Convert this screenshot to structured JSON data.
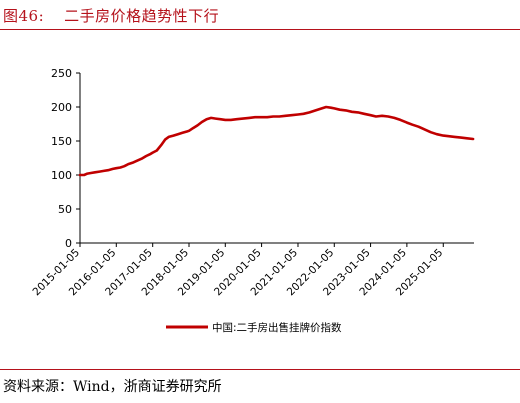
{
  "header": {
    "figure_number": "图46:",
    "title": "二手房价格趋势性下行"
  },
  "footer": {
    "source": "资料来源：Wind，浙商证券研究所"
  },
  "chart_data": {
    "type": "line",
    "title": "二手房价格趋势性下行",
    "xlabel": "",
    "ylabel": "",
    "ylim": [
      0,
      250
    ],
    "yticks": [
      0,
      50,
      100,
      150,
      200,
      250
    ],
    "xticks": [
      "2015-01-05",
      "2016-01-05",
      "2017-01-05",
      "2018-01-05",
      "2019-01-05",
      "2020-01-05",
      "2021-01-05",
      "2022-01-05",
      "2023-01-05",
      "2024-01-05",
      "2025-01-05"
    ],
    "grid": false,
    "legend_position": "bottom-center",
    "series": [
      {
        "name": "中国:二手房出售挂牌价指数",
        "color": "#c00000",
        "points": [
          [
            "2015-01-05",
            100
          ],
          [
            "2015-02-15",
            100
          ],
          [
            "2015-03-20",
            102
          ],
          [
            "2015-04-25",
            103
          ],
          [
            "2015-06-05",
            104
          ],
          [
            "2015-07-20",
            105
          ],
          [
            "2015-09-01",
            106
          ],
          [
            "2015-10-15",
            107
          ],
          [
            "2015-12-01",
            109
          ],
          [
            "2016-01-05",
            110
          ],
          [
            "2016-02-15",
            111
          ],
          [
            "2016-03-25",
            113
          ],
          [
            "2016-05-05",
            116
          ],
          [
            "2016-06-15",
            118
          ],
          [
            "2016-08-01",
            121
          ],
          [
            "2016-09-15",
            124
          ],
          [
            "2016-11-01",
            128
          ],
          [
            "2016-12-15",
            131
          ],
          [
            "2017-01-05",
            133
          ],
          [
            "2017-02-15",
            136
          ],
          [
            "2017-04-01",
            144
          ],
          [
            "2017-05-10",
            152
          ],
          [
            "2017-06-15",
            156
          ],
          [
            "2017-08-01",
            158
          ],
          [
            "2017-09-15",
            160
          ],
          [
            "2017-11-01",
            162
          ],
          [
            "2017-12-15",
            164
          ],
          [
            "2018-01-05",
            165
          ],
          [
            "2018-02-15",
            169
          ],
          [
            "2018-04-01",
            173
          ],
          [
            "2018-05-15",
            178
          ],
          [
            "2018-07-01",
            182
          ],
          [
            "2018-08-15",
            184
          ],
          [
            "2018-10-01",
            183
          ],
          [
            "2018-11-15",
            182
          ],
          [
            "2019-01-05",
            181
          ],
          [
            "2019-03-01",
            181
          ],
          [
            "2019-05-01",
            182
          ],
          [
            "2019-07-01",
            183
          ],
          [
            "2019-09-01",
            184
          ],
          [
            "2019-11-01",
            185
          ],
          [
            "2020-01-05",
            185
          ],
          [
            "2020-03-01",
            185
          ],
          [
            "2020-05-01",
            186
          ],
          [
            "2020-07-01",
            186
          ],
          [
            "2020-09-01",
            187
          ],
          [
            "2020-11-01",
            188
          ],
          [
            "2021-01-05",
            189
          ],
          [
            "2021-03-01",
            190
          ],
          [
            "2021-05-01",
            192
          ],
          [
            "2021-07-01",
            195
          ],
          [
            "2021-09-01",
            198
          ],
          [
            "2021-10-15",
            200
          ],
          [
            "2021-12-01",
            199
          ],
          [
            "2022-01-05",
            198
          ],
          [
            "2022-03-01",
            196
          ],
          [
            "2022-05-01",
            195
          ],
          [
            "2022-07-01",
            193
          ],
          [
            "2022-09-01",
            192
          ],
          [
            "2022-11-01",
            190
          ],
          [
            "2023-01-05",
            188
          ],
          [
            "2023-03-01",
            186
          ],
          [
            "2023-05-01",
            187
          ],
          [
            "2023-07-01",
            186
          ],
          [
            "2023-09-01",
            184
          ],
          [
            "2023-11-01",
            181
          ],
          [
            "2024-01-05",
            177
          ],
          [
            "2024-03-01",
            174
          ],
          [
            "2024-05-01",
            171
          ],
          [
            "2024-07-01",
            167
          ],
          [
            "2024-09-01",
            163
          ],
          [
            "2024-11-01",
            160
          ],
          [
            "2025-01-05",
            158
          ],
          [
            "2025-03-01",
            157
          ],
          [
            "2025-05-01",
            156
          ],
          [
            "2025-07-01",
            155
          ],
          [
            "2025-09-01",
            154
          ],
          [
            "2025-11-01",
            153
          ]
        ]
      }
    ]
  }
}
